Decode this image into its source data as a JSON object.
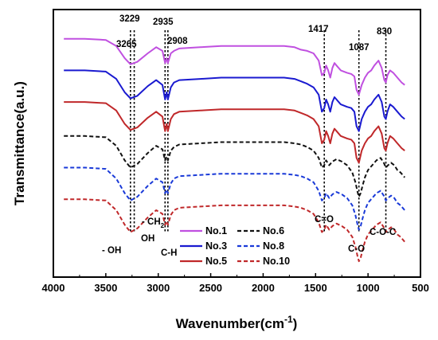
{
  "chart_data": {
    "type": "line",
    "xlabel": "Wavenumber(cm-1)",
    "xlabel_main": "Wavenumber(cm",
    "xlabel_sup": "-1",
    "xlabel_close": ")",
    "ylabel": "Transmittance(a.u.)",
    "xlim": [
      4000,
      500
    ],
    "x_reversed": true,
    "xticks": [
      4000,
      3500,
      3000,
      2500,
      2000,
      1500,
      1000,
      500
    ],
    "xtick_labels": [
      "4000",
      "3500",
      "3000",
      "2500",
      "2000",
      "1500",
      "1000",
      "500"
    ],
    "y_ticks_shown": false,
    "legend_placement": "bottom-center",
    "series": [
      {
        "name": "No.1",
        "color": "#c050e0",
        "dash": "solid",
        "offset": 5.0,
        "x": [
          3900,
          3700,
          3500,
          3400,
          3320,
          3265,
          3200,
          3100,
          3020,
          2960,
          2935,
          2920,
          2908,
          2880,
          2850,
          2800,
          2600,
          2400,
          2200,
          2000,
          1800,
          1700,
          1640,
          1580,
          1520,
          1470,
          1440,
          1417,
          1400,
          1380,
          1360,
          1340,
          1320,
          1300,
          1260,
          1200,
          1160,
          1130,
          1110,
          1087,
          1060,
          1030,
          1000,
          970,
          940,
          900,
          870,
          845,
          830,
          815,
          790,
          760,
          720,
          680,
          650
        ],
        "y": [
          0.0,
          0.0,
          -0.05,
          -0.3,
          -0.8,
          -1.05,
          -0.95,
          -0.6,
          -0.35,
          -0.5,
          -1.0,
          -0.8,
          -1.0,
          -0.6,
          -0.5,
          -0.4,
          -0.35,
          -0.3,
          -0.3,
          -0.3,
          -0.3,
          -0.35,
          -0.45,
          -0.5,
          -0.6,
          -0.9,
          -1.5,
          -1.4,
          -1.1,
          -1.3,
          -1.6,
          -1.2,
          -1.0,
          -1.1,
          -1.3,
          -1.4,
          -1.45,
          -1.55,
          -2.1,
          -2.3,
          -1.9,
          -1.6,
          -1.4,
          -1.3,
          -1.1,
          -0.9,
          -1.2,
          -1.7,
          -1.8,
          -1.5,
          -1.3,
          -1.4,
          -1.6,
          -1.8,
          -1.9
        ]
      },
      {
        "name": "No.3",
        "color": "#1a1ad0",
        "dash": "solid",
        "offset": 3.7,
        "x": [
          3900,
          3700,
          3500,
          3400,
          3320,
          3265,
          3200,
          3100,
          3020,
          2960,
          2935,
          2920,
          2908,
          2880,
          2850,
          2800,
          2600,
          2400,
          2200,
          2000,
          1800,
          1700,
          1640,
          1580,
          1520,
          1470,
          1440,
          1417,
          1400,
          1380,
          1360,
          1340,
          1320,
          1300,
          1260,
          1200,
          1160,
          1130,
          1110,
          1087,
          1060,
          1030,
          1000,
          970,
          940,
          900,
          870,
          845,
          830,
          815,
          790,
          760,
          720,
          680,
          650
        ],
        "y": [
          0.0,
          0.0,
          -0.05,
          -0.35,
          -0.9,
          -1.15,
          -1.05,
          -0.65,
          -0.4,
          -0.6,
          -1.2,
          -0.9,
          -1.2,
          -0.7,
          -0.5,
          -0.4,
          -0.35,
          -0.3,
          -0.3,
          -0.3,
          -0.3,
          -0.35,
          -0.45,
          -0.55,
          -0.7,
          -1.0,
          -1.7,
          -1.55,
          -1.2,
          -1.4,
          -1.7,
          -1.3,
          -1.1,
          -1.2,
          -1.4,
          -1.5,
          -1.55,
          -1.7,
          -2.3,
          -2.5,
          -2.0,
          -1.7,
          -1.5,
          -1.4,
          -1.2,
          -1.0,
          -1.3,
          -1.9,
          -2.0,
          -1.7,
          -1.4,
          -1.5,
          -1.7,
          -1.9,
          -2.0
        ]
      },
      {
        "name": "No.5",
        "color": "#c0282a",
        "dash": "solid",
        "offset": 2.4,
        "x": [
          3900,
          3700,
          3500,
          3400,
          3320,
          3265,
          3200,
          3100,
          3020,
          2960,
          2935,
          2920,
          2908,
          2880,
          2850,
          2800,
          2600,
          2400,
          2200,
          2000,
          1800,
          1700,
          1640,
          1580,
          1520,
          1470,
          1440,
          1417,
          1400,
          1380,
          1360,
          1340,
          1320,
          1300,
          1260,
          1200,
          1160,
          1130,
          1110,
          1087,
          1060,
          1030,
          1000,
          970,
          940,
          900,
          870,
          845,
          830,
          815,
          790,
          760,
          720,
          680,
          650
        ],
        "y": [
          0.0,
          0.0,
          -0.05,
          -0.35,
          -0.9,
          -1.15,
          -1.05,
          -0.65,
          -0.4,
          -0.6,
          -1.2,
          -0.9,
          -1.2,
          -0.7,
          -0.5,
          -0.4,
          -0.35,
          -0.3,
          -0.3,
          -0.3,
          -0.3,
          -0.35,
          -0.45,
          -0.55,
          -0.7,
          -1.0,
          -1.7,
          -1.55,
          -1.2,
          -1.4,
          -1.7,
          -1.3,
          -1.1,
          -1.2,
          -1.4,
          -1.5,
          -1.55,
          -1.7,
          -2.3,
          -2.5,
          -2.0,
          -1.7,
          -1.5,
          -1.4,
          -1.2,
          -1.0,
          -1.3,
          -1.9,
          -2.0,
          -1.7,
          -1.4,
          -1.5,
          -1.7,
          -1.9,
          -2.0
        ]
      },
      {
        "name": "No.6",
        "color": "#111111",
        "dash": "dashed",
        "offset": 1.0,
        "x": [
          3900,
          3700,
          3500,
          3400,
          3320,
          3265,
          3200,
          3100,
          3020,
          2960,
          2935,
          2920,
          2908,
          2880,
          2850,
          2800,
          2600,
          2400,
          2200,
          2000,
          1800,
          1700,
          1640,
          1580,
          1520,
          1470,
          1440,
          1417,
          1400,
          1370,
          1340,
          1300,
          1250,
          1200,
          1150,
          1120,
          1100,
          1087,
          1070,
          1050,
          1030,
          1000,
          960,
          920,
          880,
          850,
          830,
          810,
          780,
          750,
          720,
          690,
          650
        ],
        "y": [
          0.0,
          0.0,
          -0.05,
          -0.4,
          -1.0,
          -1.3,
          -1.15,
          -0.7,
          -0.4,
          -0.55,
          -1.0,
          -0.85,
          -1.0,
          -0.6,
          -0.45,
          -0.35,
          -0.3,
          -0.25,
          -0.25,
          -0.25,
          -0.25,
          -0.3,
          -0.35,
          -0.45,
          -0.6,
          -0.9,
          -1.3,
          -1.2,
          -1.0,
          -1.2,
          -1.05,
          -0.95,
          -1.05,
          -1.2,
          -1.5,
          -1.9,
          -2.3,
          -2.5,
          -2.35,
          -2.0,
          -1.7,
          -1.4,
          -1.2,
          -1.0,
          -0.9,
          -1.1,
          -1.3,
          -1.2,
          -1.1,
          -1.2,
          -1.4,
          -1.5,
          -1.7
        ]
      },
      {
        "name": "No.8",
        "color": "#1a3ad8",
        "dash": "dashed",
        "offset": -0.3,
        "x": [
          3900,
          3700,
          3500,
          3400,
          3320,
          3265,
          3200,
          3100,
          3020,
          2960,
          2935,
          2920,
          2908,
          2880,
          2850,
          2800,
          2600,
          2400,
          2200,
          2000,
          1800,
          1700,
          1640,
          1580,
          1520,
          1470,
          1440,
          1417,
          1400,
          1370,
          1340,
          1300,
          1250,
          1200,
          1150,
          1120,
          1100,
          1087,
          1070,
          1050,
          1030,
          1000,
          960,
          920,
          880,
          850,
          830,
          810,
          780,
          750,
          720,
          690,
          650
        ],
        "y": [
          0.0,
          0.0,
          -0.05,
          -0.45,
          -1.05,
          -1.35,
          -1.2,
          -0.75,
          -0.45,
          -0.6,
          -1.05,
          -0.9,
          -1.05,
          -0.65,
          -0.45,
          -0.35,
          -0.3,
          -0.25,
          -0.25,
          -0.25,
          -0.25,
          -0.3,
          -0.35,
          -0.45,
          -0.6,
          -0.95,
          -1.35,
          -1.25,
          -1.05,
          -1.25,
          -1.1,
          -1.0,
          -1.1,
          -1.25,
          -1.55,
          -1.95,
          -2.35,
          -2.55,
          -2.4,
          -2.05,
          -1.75,
          -1.45,
          -1.25,
          -1.05,
          -0.95,
          -1.15,
          -1.35,
          -1.25,
          -1.15,
          -1.25,
          -1.45,
          -1.55,
          -1.75
        ]
      },
      {
        "name": "No.10",
        "color": "#c0282a",
        "dash": "dashed",
        "offset": -1.6,
        "x": [
          3900,
          3700,
          3500,
          3400,
          3320,
          3265,
          3200,
          3100,
          3020,
          2960,
          2935,
          2920,
          2908,
          2880,
          2850,
          2800,
          2600,
          2400,
          2200,
          2000,
          1800,
          1700,
          1640,
          1580,
          1520,
          1470,
          1440,
          1417,
          1400,
          1370,
          1340,
          1300,
          1250,
          1200,
          1150,
          1120,
          1100,
          1087,
          1070,
          1050,
          1030,
          1000,
          960,
          920,
          880,
          850,
          830,
          810,
          780,
          750,
          720,
          690,
          650
        ],
        "y": [
          0.0,
          0.0,
          -0.05,
          -0.45,
          -1.05,
          -1.35,
          -1.2,
          -0.75,
          -0.45,
          -0.6,
          -1.05,
          -0.9,
          -1.05,
          -0.65,
          -0.45,
          -0.35,
          -0.3,
          -0.25,
          -0.25,
          -0.25,
          -0.25,
          -0.3,
          -0.35,
          -0.45,
          -0.6,
          -0.95,
          -1.35,
          -1.25,
          -1.05,
          -1.25,
          -1.1,
          -1.0,
          -1.1,
          -1.25,
          -1.55,
          -1.95,
          -2.35,
          -2.55,
          -2.4,
          -2.05,
          -1.75,
          -1.45,
          -1.25,
          -1.05,
          -0.95,
          -1.15,
          -1.35,
          -1.25,
          -1.15,
          -1.25,
          -1.45,
          -1.55,
          -1.75
        ]
      }
    ],
    "peak_lines": [
      3265,
      3229,
      2935,
      2908,
      1417,
      1087,
      830
    ],
    "annotations": {
      "peak_3265": "3265",
      "peak_3229": "3229",
      "peak_2935": "2935",
      "peak_2908": "2908",
      "peak_1417": "1417",
      "peak_1087": "1087",
      "peak_830": "830",
      "group_oh_minus": "- OH",
      "group_oh": "OH",
      "group_ch2_prefix": "- CH",
      "group_ch2_sub": "2",
      "group_ch": "C-H",
      "group_co_double": "C=O",
      "group_co": "C-O",
      "group_coc": "C-O-C"
    }
  }
}
